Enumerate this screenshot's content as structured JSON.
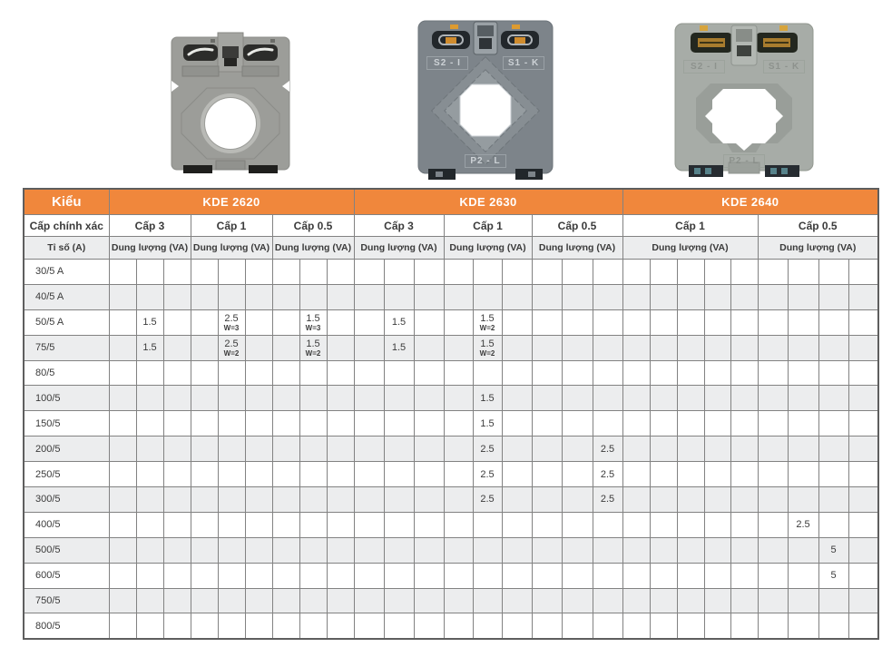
{
  "colors": {
    "header_orange": "#F0873C",
    "header_text": "#FFFFFF",
    "row_stripe": "#ECEDEE",
    "grid_border": "#828282",
    "outer_border": "#5E5E5E",
    "text": "#3B3B3B"
  },
  "products": [
    {
      "name": "current-transformer-round-hole",
      "top_left_label": "",
      "top_right_label": "",
      "bottom_label": ""
    },
    {
      "name": "current-transformer-stepped-hole",
      "top_left_label": "S2 - I",
      "top_right_label": "S1 - K",
      "bottom_label": "P2 - L"
    },
    {
      "name": "current-transformer-octagon-hole",
      "top_left_label": "S2 - I",
      "top_right_label": "S1 - K",
      "bottom_label": "P2 - L"
    }
  ],
  "table": {
    "corner_label": "Kiểu",
    "row2_label": "Cấp chính xác",
    "row3_label": "Tỉ số (A)",
    "capacity_label": "Dung lượng (VA)",
    "groups": [
      {
        "model": "KDE 2620",
        "classes": [
          {
            "label": "Cấp 3",
            "cols": 3
          },
          {
            "label": "Cấp 1",
            "cols": 3
          },
          {
            "label": "Cấp 0.5",
            "cols": 3
          }
        ]
      },
      {
        "model": "KDE 2630",
        "classes": [
          {
            "label": "Cấp 3",
            "cols": 3
          },
          {
            "label": "Cấp 1",
            "cols": 3
          },
          {
            "label": "Cấp 0.5",
            "cols": 3
          }
        ]
      },
      {
        "model": "KDE 2640",
        "classes": [
          {
            "label": "Cấp 1",
            "cols": 5
          },
          {
            "label": "Cấp 0.5",
            "cols": 4
          }
        ]
      }
    ],
    "rows": [
      {
        "label": "30/5 A",
        "cells": []
      },
      {
        "label": "40/5 A",
        "cells": []
      },
      {
        "label": "50/5 A",
        "cells": [
          {
            "col": 1,
            "v": "1.5"
          },
          {
            "col": 4,
            "v": "2.5",
            "note": "W=3"
          },
          {
            "col": 7,
            "v": "1.5",
            "note": "W=3"
          },
          {
            "col": 10,
            "v": "1.5"
          },
          {
            "col": 13,
            "v": "1.5",
            "note": "W=2"
          }
        ]
      },
      {
        "label": "75/5",
        "cells": [
          {
            "col": 1,
            "v": "1.5"
          },
          {
            "col": 4,
            "v": "2.5",
            "note": "W=2"
          },
          {
            "col": 7,
            "v": "1.5",
            "note": "W=2"
          },
          {
            "col": 10,
            "v": "1.5"
          },
          {
            "col": 13,
            "v": "1.5",
            "note": "W=2"
          }
        ]
      },
      {
        "label": "80/5",
        "cells": []
      },
      {
        "label": "100/5",
        "cells": [
          {
            "col": 13,
            "v": "1.5"
          }
        ]
      },
      {
        "label": "150/5",
        "cells": [
          {
            "col": 13,
            "v": "1.5"
          }
        ]
      },
      {
        "label": "200/5",
        "cells": [
          {
            "col": 13,
            "v": "2.5"
          },
          {
            "col": 17,
            "v": "2.5"
          }
        ]
      },
      {
        "label": "250/5",
        "cells": [
          {
            "col": 13,
            "v": "2.5"
          },
          {
            "col": 17,
            "v": "2.5"
          }
        ]
      },
      {
        "label": "300/5",
        "cells": [
          {
            "col": 13,
            "v": "2.5"
          },
          {
            "col": 17,
            "v": "2.5"
          }
        ]
      },
      {
        "label": "400/5",
        "cells": [
          {
            "col": 24,
            "v": "2.5"
          }
        ]
      },
      {
        "label": "500/5",
        "cells": [
          {
            "col": 25,
            "v": "5"
          }
        ]
      },
      {
        "label": "600/5",
        "cells": [
          {
            "col": 25,
            "v": "5"
          }
        ]
      },
      {
        "label": "750/5",
        "cells": []
      },
      {
        "label": "800/5",
        "cells": []
      }
    ]
  }
}
